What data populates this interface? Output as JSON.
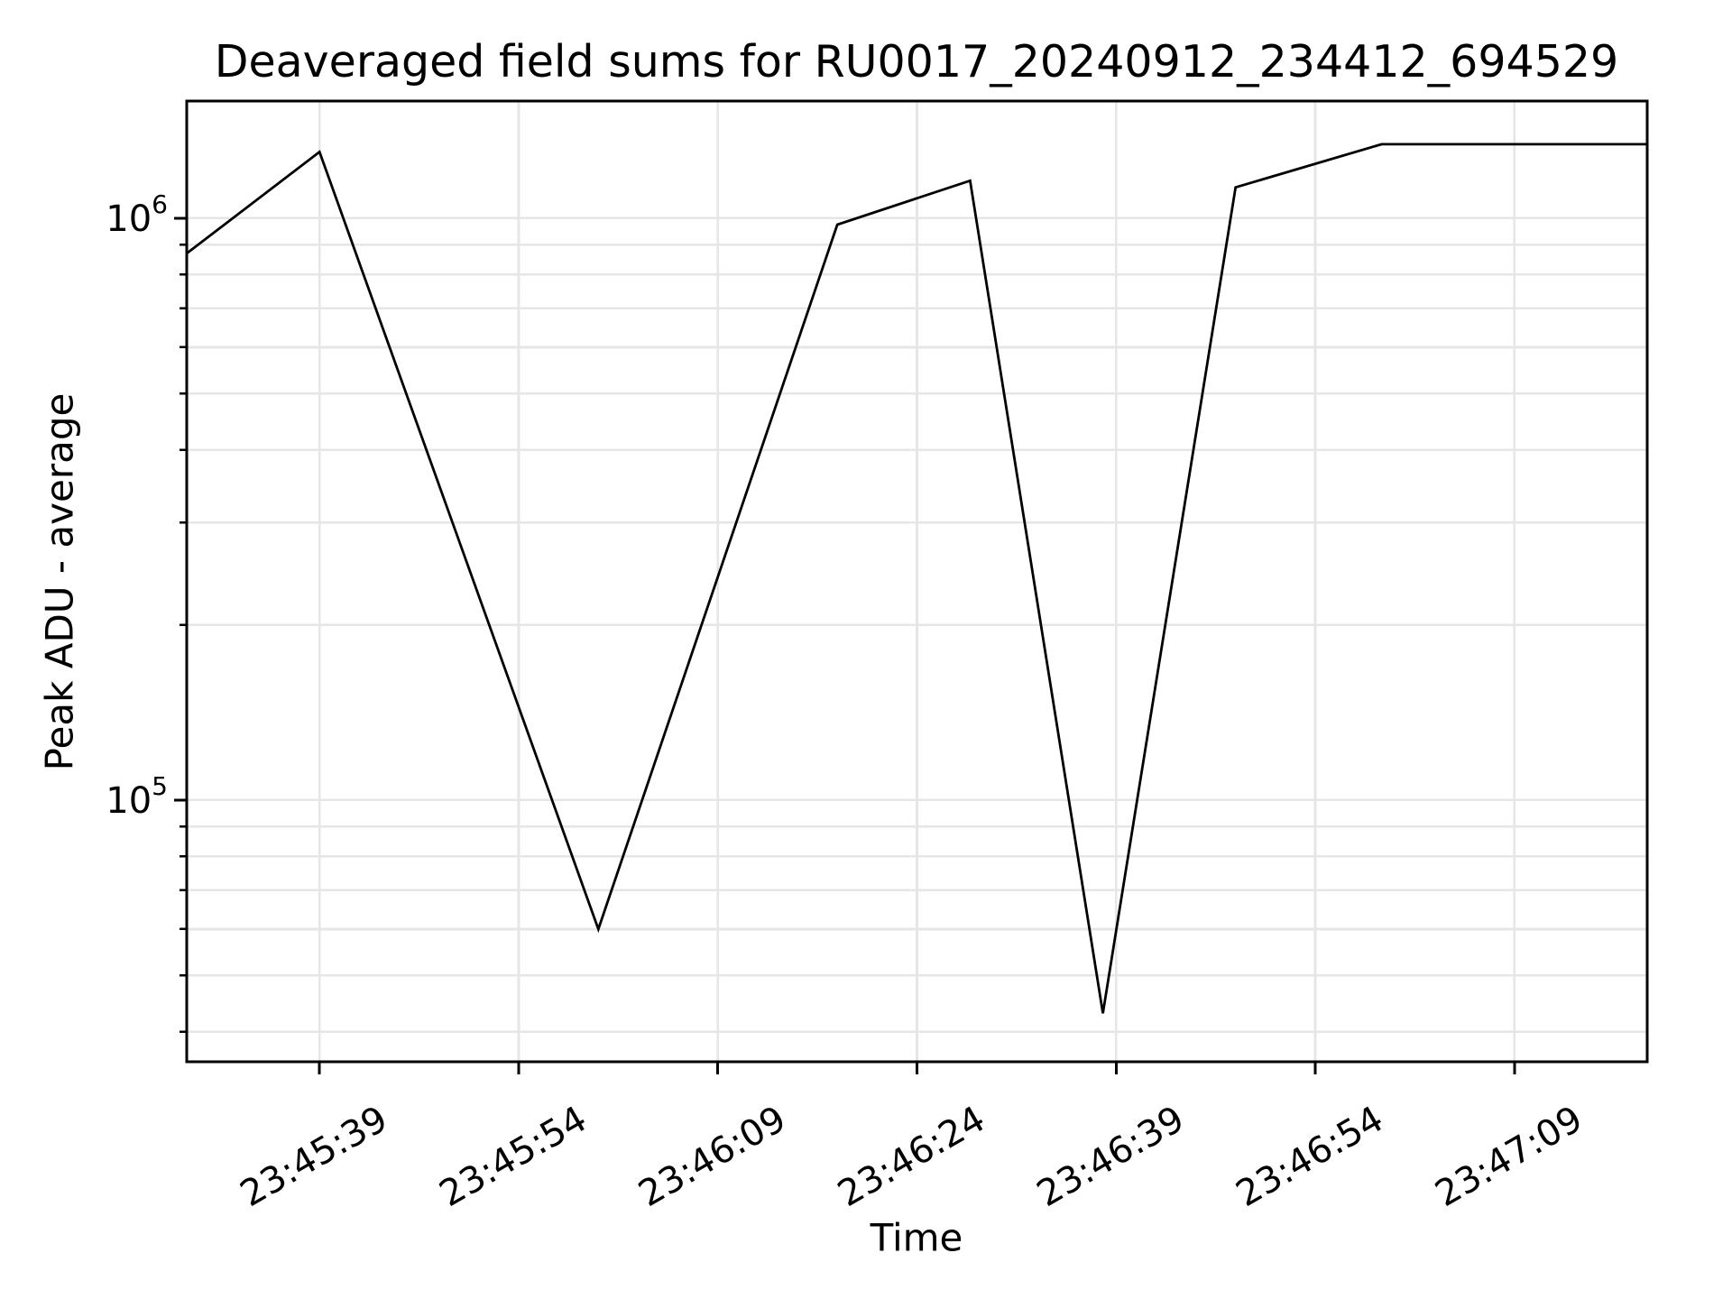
{
  "chart_data": {
    "type": "line",
    "title": "Deaveraged field sums for RU0017_20240912_234412_694529",
    "xlabel": "Time",
    "ylabel": "Peak ADU - average",
    "yscale": "log",
    "grid": true,
    "legend": false,
    "xlim": [
      "23:45:29",
      "23:47:19"
    ],
    "ylim": [
      35500,
      1590000
    ],
    "x_ticks": [
      "23:45:39",
      "23:45:54",
      "23:46:09",
      "23:46:24",
      "23:46:39",
      "23:46:54",
      "23:47:09"
    ],
    "y_major_ticks": [
      {
        "value": 1000000,
        "mantissa": "10",
        "exponent": "6"
      },
      {
        "value": 100000,
        "mantissa": "10",
        "exponent": "5"
      }
    ],
    "series": [
      {
        "name": "Peak ADU - average",
        "color": "#000000",
        "points": [
          {
            "time": "23:45:29",
            "value": 870000
          },
          {
            "time": "23:45:39",
            "value": 1300000
          },
          {
            "time": "23:46:00",
            "value": 60000
          },
          {
            "time": "23:46:18",
            "value": 975000
          },
          {
            "time": "23:46:28",
            "value": 1160000
          },
          {
            "time": "23:46:38",
            "value": 43000
          },
          {
            "time": "23:46:48",
            "value": 1130000
          },
          {
            "time": "23:46:59",
            "value": 1340000
          },
          {
            "time": "23:47:19",
            "value": 1340000
          }
        ]
      }
    ],
    "colors": {
      "line": "#000000",
      "grid": "#e6e6e6",
      "axis": "#000000",
      "background": "#ffffff"
    }
  }
}
